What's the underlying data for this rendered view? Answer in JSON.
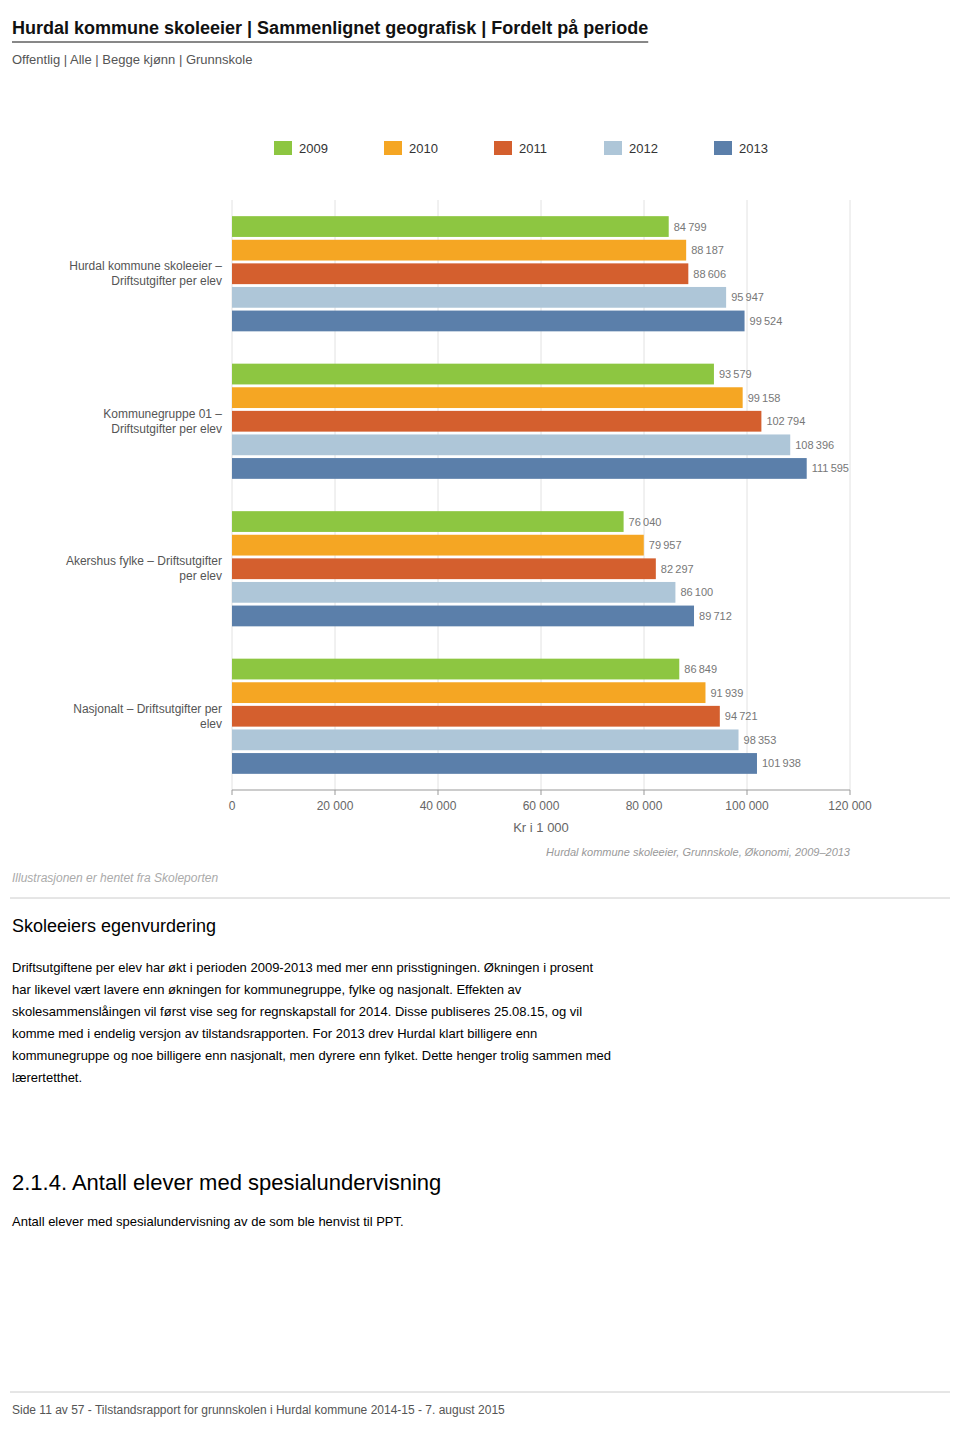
{
  "chart_data": {
    "type": "bar",
    "orientation": "horizontal",
    "title": "Hurdal kommune skoleeier | Sammenlignet geografisk | Fordelt på periode",
    "subtitle": "Offentlig | Alle | Begge kjønn | Grunnskole",
    "categories": [
      "Hurdal kommune skoleeier –\nDriftsutgifter per elev",
      "Kommunegruppe 01 –\nDriftsutgifter per elev",
      "Akershus fylke – Driftsutgifter\nper elev",
      "Nasjonalt – Driftsutgifter per\nelev"
    ],
    "series": [
      {
        "name": "2009",
        "color": "#8dc641",
        "values": [
          84799,
          93579,
          76040,
          86849
        ],
        "value_labels": [
          "84 799",
          "93 579",
          "76 040",
          "86 849"
        ]
      },
      {
        "name": "2010",
        "color": "#f5a623",
        "values": [
          88187,
          99158,
          79957,
          91939
        ],
        "value_labels": [
          "88 187",
          "99 158",
          "79 957",
          "91 939"
        ]
      },
      {
        "name": "2011",
        "color": "#d45f2e",
        "values": [
          88606,
          102794,
          82297,
          94721
        ],
        "value_labels": [
          "88 606",
          "102 794",
          "82 297",
          "94 721"
        ]
      },
      {
        "name": "2012",
        "color": "#aec6d8",
        "values": [
          95947,
          108396,
          86100,
          98353
        ],
        "value_labels": [
          "95 947",
          "108 396",
          "86 100",
          "98 353"
        ]
      },
      {
        "name": "2013",
        "color": "#5b7faa",
        "values": [
          99524,
          111595,
          89712,
          101938
        ],
        "value_labels": [
          "99 524",
          "111 595",
          "89 712",
          "101 938"
        ]
      }
    ],
    "xlim": [
      0,
      120000
    ],
    "xticks": [
      0,
      {
        "value": 20000,
        "label": "20 000"
      },
      {
        "value": 40000,
        "label": "40 000"
      },
      {
        "value": 60000,
        "label": "60 000"
      },
      {
        "value": 80000,
        "label": "80 000"
      },
      {
        "value": 100000,
        "label": "100 000"
      },
      {
        "value": 120000,
        "label": "120 000"
      }
    ],
    "xlabel": "Kr i 1 000",
    "grid": true,
    "legend": "top",
    "data_labels": true
  },
  "source_note": "Hurdal kommune skoleeier, Grunnskole, Økonomi, 2009–2013",
  "illustration_note": "Illustrasjonen er hentet fra Skoleporten",
  "body_heading": "Skoleeiers egenvurdering",
  "body_text": "Driftsutgiftene per elev har økt i perioden 2009-2013 med mer enn prisstigningen. Økningen i prosent\nhar likevel vært lavere enn økningen for kommunegruppe, fylke og nasjonalt. Effekten av\nskolesammenslåingen vil først vise seg for regnskapstall for 2014. Disse publiseres 25.08.15, og vil\nkomme med i endelig versjon av tilstandsrapporten. For 2013 drev Hurdal klart billigere enn\nkommunegruppe og noe billigere enn nasjonalt, men dyrere enn fylket. Dette henger trolig sammen med\nlærertetthet.",
  "section_heading": "2.1.4.  Antall elever med spesialundervisning",
  "section_text": "Antall elever med spesialundervisning av de som ble henvist til PPT.",
  "footer": "Side 11 av 57 - Tilstandsrapport for grunnskolen i Hurdal kommune 2014-15 - 7. august 2015"
}
